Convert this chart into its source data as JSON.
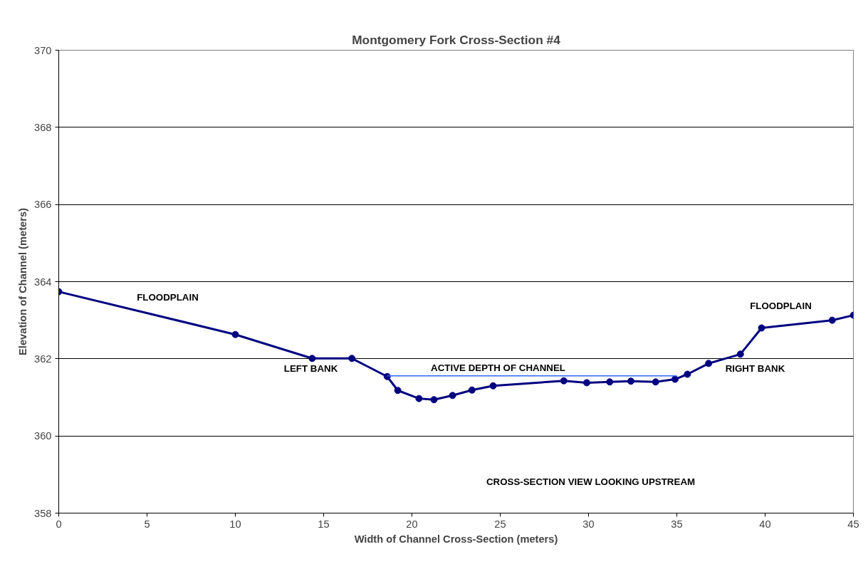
{
  "chart_data": {
    "type": "line",
    "title": "Montgomery Fork Cross-Section #4",
    "xlabel": "Width of Channel Cross-Section (meters)",
    "ylabel": "Elevation of Channel (meters)",
    "series": [
      {
        "color": "#000080",
        "marker": "circle",
        "x": [
          0,
          10,
          14.35,
          16.6,
          18.6,
          19.2,
          20.4,
          21.25,
          22.3,
          23.4,
          24.6,
          28.6,
          29.9,
          31.2,
          32.4,
          33.8,
          34.9,
          35.6,
          36.8,
          38.6,
          39.8,
          43.8,
          45
        ],
        "values": [
          363.74,
          362.63,
          362.01,
          362.01,
          361.54,
          361.18,
          360.97,
          360.94,
          361.05,
          361.19,
          361.3,
          361.43,
          361.38,
          361.4,
          361.42,
          361.4,
          361.47,
          361.6,
          361.88,
          362.12,
          362.8,
          363.0,
          363.13
        ]
      },
      {
        "color": "#3366ff",
        "marker": "none",
        "x": [
          18.6,
          35
        ],
        "values": [
          361.56,
          361.56
        ]
      }
    ],
    "xlim": [
      0,
      45
    ],
    "xticks": [
      0,
      5,
      10,
      15,
      20,
      25,
      30,
      35,
      40,
      45
    ],
    "ylim": [
      358,
      370
    ],
    "yticks": [
      358,
      360,
      362,
      364,
      366,
      368,
      370
    ],
    "grid": "y",
    "annotations": [
      "FLOODPLAIN",
      "LEFT BANK",
      "ACTIVE DEPTH OF CHANNEL",
      "RIGHT BANK",
      "FLOODPLAIN",
      "CROSS-SECTION VIEW LOOKING UPSTREAM"
    ]
  }
}
